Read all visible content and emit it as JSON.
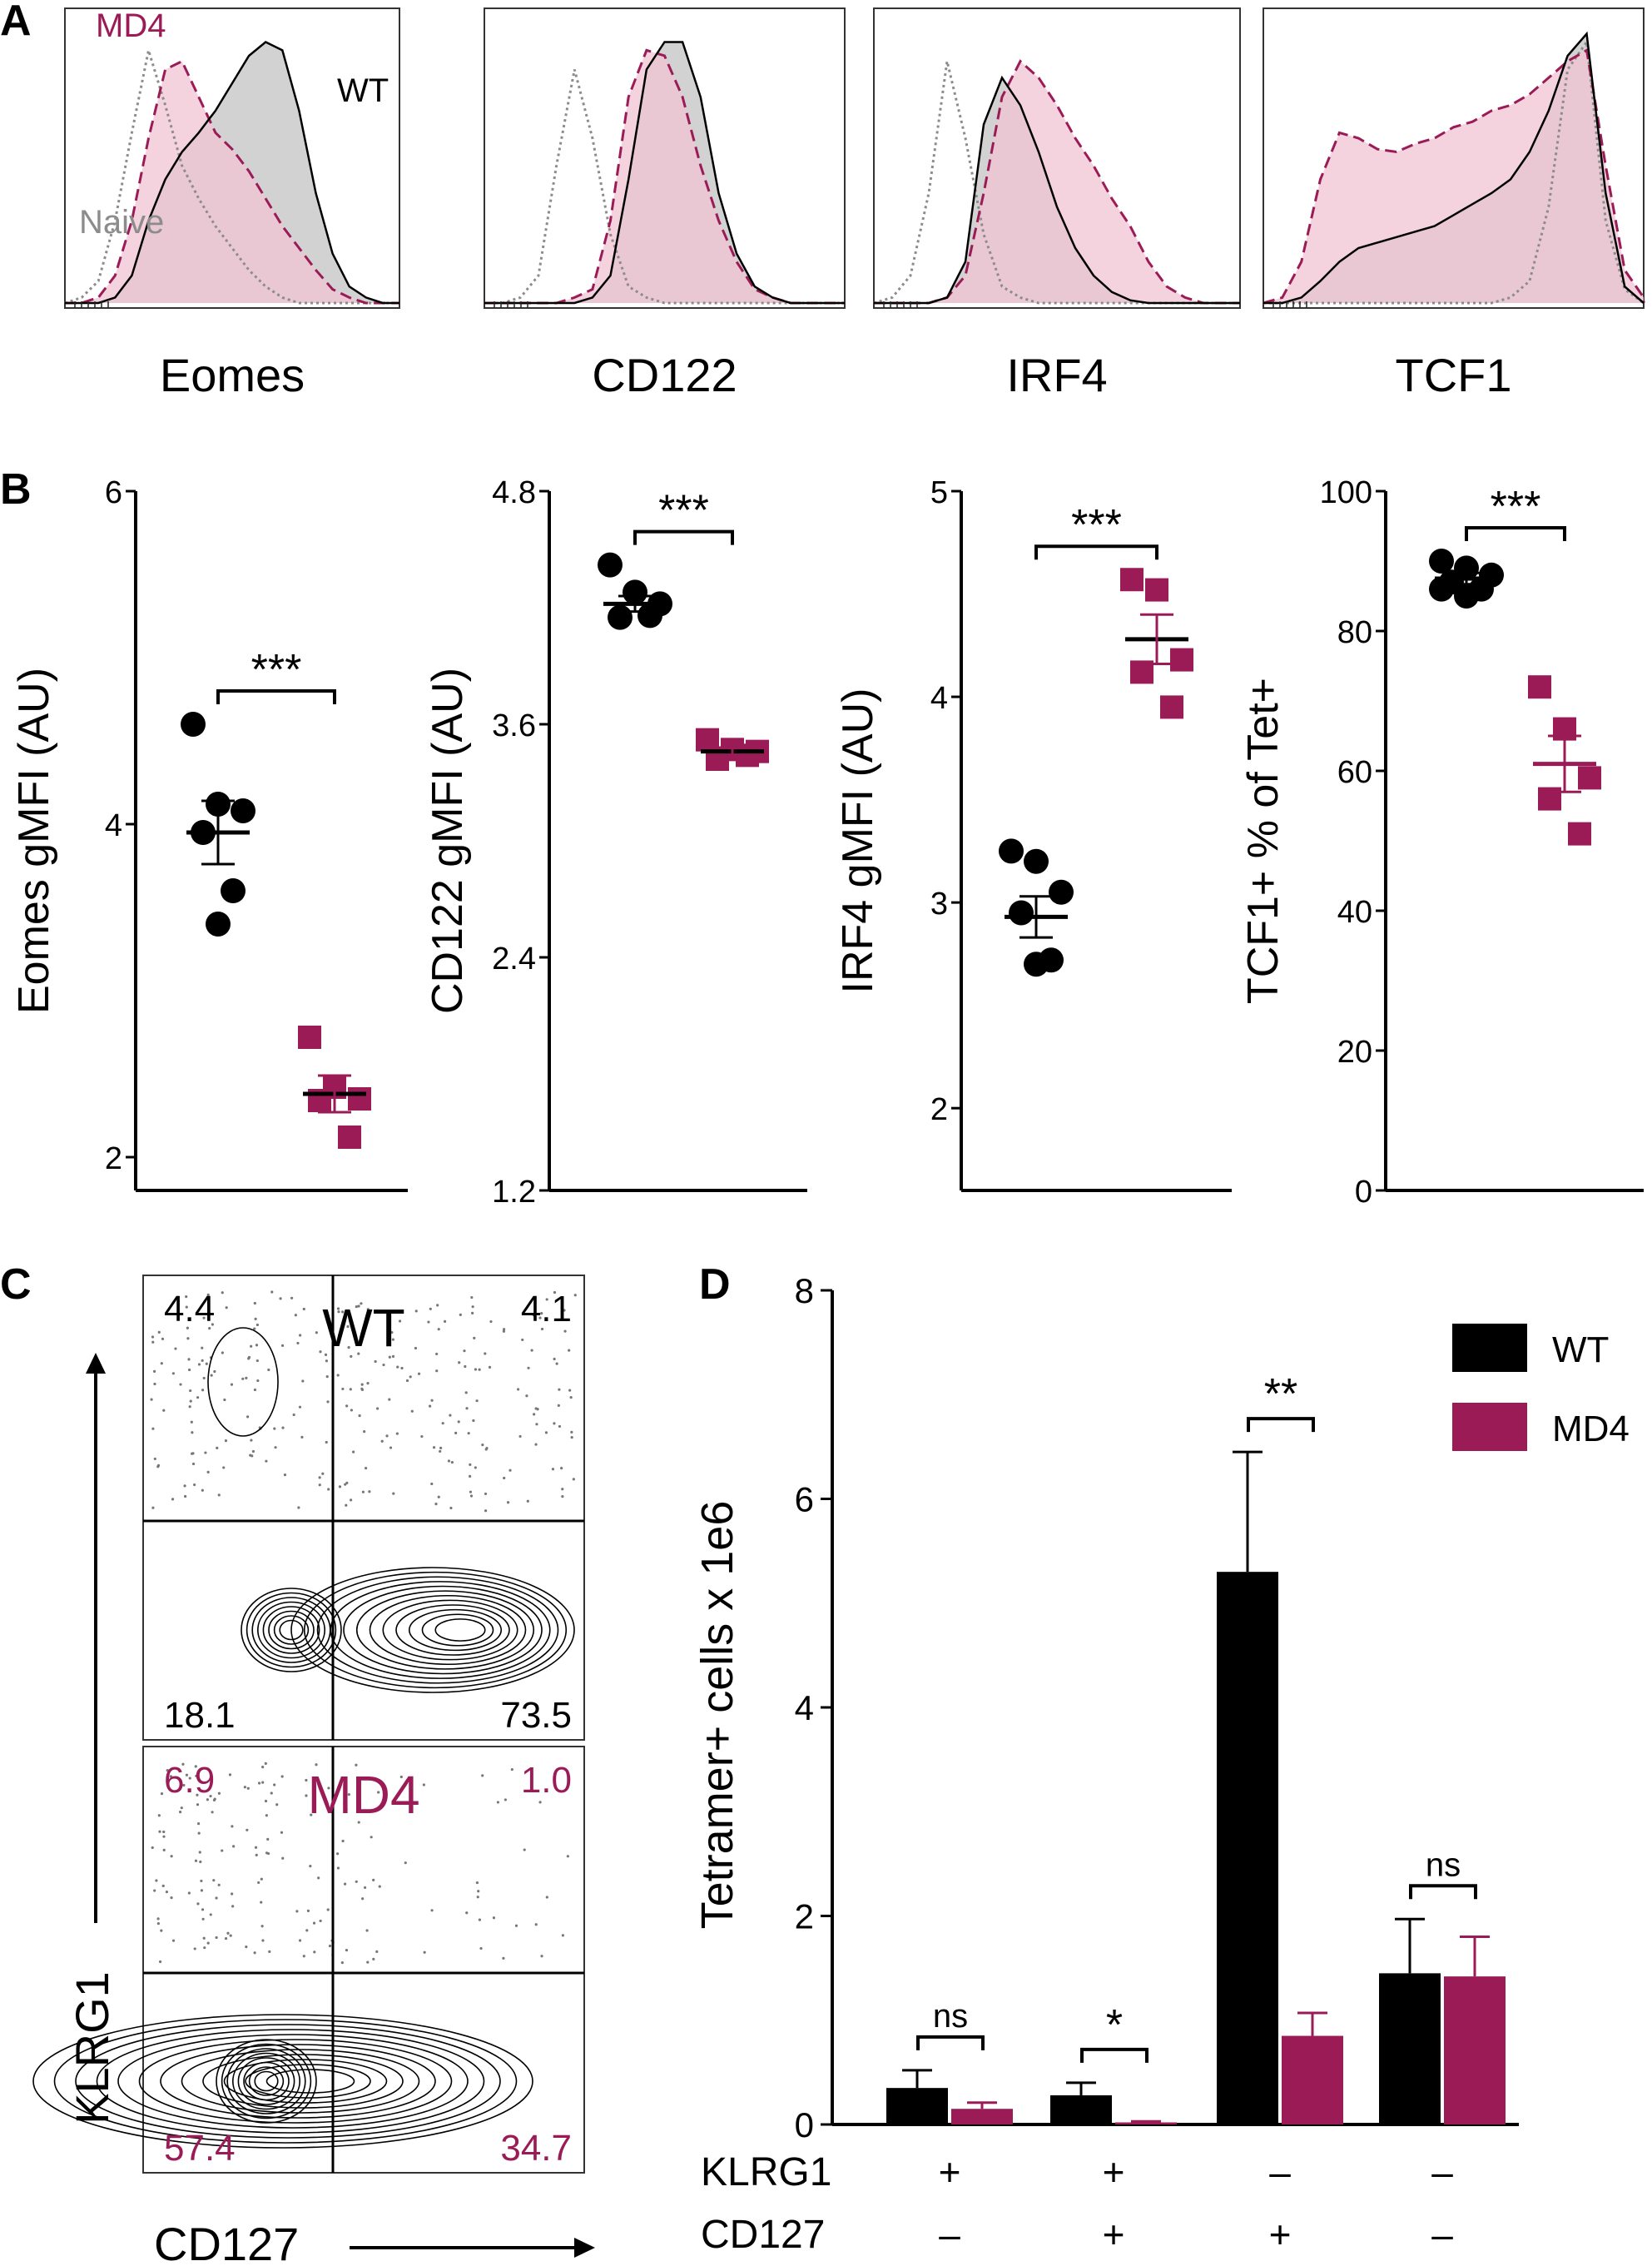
{
  "figure": {
    "panel_labels": [
      "A",
      "B",
      "C",
      "D"
    ],
    "colors": {
      "wt": "#000000",
      "md4": "#9b1b57",
      "md4_fill": "#f0c4d4",
      "wt_fill": "#d2d2d2",
      "naive": "#8c8c8c"
    }
  },
  "chart_data": [
    {
      "panel": "A",
      "type": "area",
      "subtype": "flow-cytometry histograms",
      "series_labels": {
        "md4": "MD4",
        "wt": "WT",
        "naive": "Naive"
      },
      "histograms": [
        {
          "xlabel": "Eomes",
          "profiles": {
            "naive": [
              0,
              0.02,
              0.08,
              0.3,
              0.62,
              0.92,
              0.72,
              0.5,
              0.38,
              0.28,
              0.2,
              0.12,
              0.06,
              0.02,
              0,
              0,
              0,
              0,
              0,
              0,
              0
            ],
            "md4": [
              0,
              0,
              0.02,
              0.1,
              0.3,
              0.6,
              0.85,
              0.88,
              0.75,
              0.62,
              0.56,
              0.48,
              0.38,
              0.28,
              0.2,
              0.12,
              0.05,
              0.02,
              0,
              0,
              0
            ],
            "wt": [
              0,
              0,
              0,
              0.02,
              0.1,
              0.3,
              0.45,
              0.55,
              0.62,
              0.7,
              0.8,
              0.9,
              0.95,
              0.92,
              0.7,
              0.4,
              0.18,
              0.06,
              0.02,
              0,
              0
            ]
          }
        },
        {
          "xlabel": "CD122",
          "profiles": {
            "naive": [
              0,
              0,
              0.02,
              0.1,
              0.5,
              0.85,
              0.6,
              0.25,
              0.06,
              0.02,
              0,
              0,
              0,
              0,
              0,
              0,
              0,
              0,
              0,
              0,
              0
            ],
            "md4": [
              0,
              0,
              0,
              0,
              0,
              0.02,
              0.05,
              0.3,
              0.75,
              0.92,
              0.9,
              0.75,
              0.5,
              0.3,
              0.15,
              0.05,
              0.02,
              0,
              0,
              0,
              0
            ],
            "wt": [
              0,
              0,
              0,
              0,
              0,
              0,
              0.02,
              0.1,
              0.45,
              0.85,
              0.95,
              0.95,
              0.75,
              0.4,
              0.18,
              0.06,
              0.02,
              0,
              0,
              0,
              0
            ]
          }
        },
        {
          "xlabel": "IRF4",
          "profiles": {
            "naive": [
              0,
              0.02,
              0.1,
              0.4,
              0.88,
              0.6,
              0.25,
              0.06,
              0.02,
              0,
              0,
              0,
              0,
              0,
              0,
              0,
              0,
              0,
              0,
              0,
              0
            ],
            "md4": [
              0,
              0,
              0,
              0,
              0.02,
              0.1,
              0.4,
              0.75,
              0.88,
              0.82,
              0.72,
              0.6,
              0.5,
              0.38,
              0.28,
              0.15,
              0.06,
              0.02,
              0,
              0,
              0
            ],
            "wt": [
              0,
              0,
              0,
              0,
              0.02,
              0.15,
              0.65,
              0.82,
              0.72,
              0.55,
              0.35,
              0.2,
              0.1,
              0.04,
              0.01,
              0,
              0,
              0,
              0,
              0,
              0
            ]
          }
        },
        {
          "xlabel": "TCF1",
          "profiles": {
            "naive": [
              0,
              0,
              0,
              0,
              0,
              0,
              0,
              0,
              0,
              0,
              0,
              0,
              0,
              0.02,
              0.08,
              0.35,
              0.85,
              0.95,
              0.3,
              0.05,
              0
            ],
            "md4": [
              0,
              0.02,
              0.15,
              0.45,
              0.62,
              0.6,
              0.56,
              0.55,
              0.58,
              0.6,
              0.64,
              0.66,
              0.7,
              0.72,
              0.76,
              0.82,
              0.88,
              0.92,
              0.5,
              0.12,
              0.02
            ],
            "wt": [
              0,
              0,
              0.02,
              0.08,
              0.15,
              0.2,
              0.22,
              0.24,
              0.26,
              0.28,
              0.32,
              0.36,
              0.4,
              0.45,
              0.55,
              0.7,
              0.9,
              0.98,
              0.4,
              0.06,
              0
            ]
          }
        }
      ]
    },
    {
      "panel": "B",
      "type": "scatter",
      "subplots": [
        {
          "ylabel": "Eomes gMFI (AU)",
          "ylim": [
            1.8,
            6
          ],
          "yticks": [
            "6",
            "4",
            "2"
          ],
          "ytick_values": [
            6,
            4,
            2
          ],
          "significance": "***",
          "wt": {
            "points": [
              4.6,
              4.12,
              4.08,
              3.95,
              3.6,
              3.4
            ],
            "mean": 3.95,
            "sem": 0.19
          },
          "md4": {
            "points": [
              2.72,
              2.42,
              2.35,
              2.34,
              2.12
            ],
            "mean": 2.38,
            "sem": 0.11
          }
        },
        {
          "ylabel": "CD122 gMFI (AU)",
          "ylim": [
            1.2,
            4.8
          ],
          "yticks": [
            "4.8",
            "3.6",
            "2.4",
            "1.2"
          ],
          "ytick_values": [
            4.8,
            3.6,
            2.4,
            1.2
          ],
          "significance": "***",
          "wt": {
            "points": [
              4.42,
              4.28,
              4.22,
              4.15,
              4.16
            ],
            "mean": 4.22,
            "sem": 0.04
          },
          "md4": {
            "points": [
              3.52,
              3.47,
              3.46,
              3.42,
              3.44
            ],
            "mean": 3.46,
            "sem": 0.02
          }
        },
        {
          "ylabel": "IRF4 gMFI (AU)",
          "ylim": [
            1.6,
            5
          ],
          "yticks": [
            "5",
            "4",
            "3",
            "2"
          ],
          "ytick_values": [
            5,
            4,
            3,
            2
          ],
          "significance": "***",
          "wt": {
            "points": [
              3.25,
              3.2,
              3.05,
              2.95,
              2.72,
              2.7
            ],
            "mean": 2.93,
            "sem": 0.1
          },
          "md4": {
            "points": [
              4.57,
              4.52,
              4.18,
              4.12,
              3.95
            ],
            "mean": 4.28,
            "sem": 0.12
          }
        },
        {
          "ylabel": "TCF1+ % of Tet+",
          "ylim": [
            0,
            100
          ],
          "yticks": [
            "100",
            "80",
            "60",
            "40",
            "20",
            "0"
          ],
          "ytick_values": [
            100,
            80,
            60,
            40,
            20,
            0
          ],
          "significance": "***",
          "wt": {
            "points": [
              90,
              89,
              88,
              87,
              86,
              85,
              86
            ],
            "mean": 87.5,
            "sem": 0.8
          },
          "md4": {
            "points": [
              72,
              66,
              59,
              56,
              51
            ],
            "mean": 61,
            "sem": 4
          }
        }
      ]
    },
    {
      "panel": "C",
      "type": "scatter",
      "subtype": "flow-cytometry contour plots",
      "ylabel": "KLRG1",
      "xlabel": "CD127",
      "plots": [
        {
          "label": "WT",
          "color": "#000000",
          "quadrants": {
            "top_left": "4.4",
            "top_right": "4.1",
            "bottom_left": "18.1",
            "bottom_right": "73.5"
          }
        },
        {
          "label": "MD4",
          "color": "#9b1b57",
          "quadrants": {
            "top_left": "6.9",
            "top_right": "1.0",
            "bottom_left": "57.4",
            "bottom_right": "34.7"
          }
        }
      ]
    },
    {
      "panel": "D",
      "type": "bar",
      "ylabel": "Tetramer+  cells x 1e6",
      "ylim": [
        0,
        8
      ],
      "yticks": [
        "0",
        "2",
        "4",
        "6",
        "8"
      ],
      "ytick_values": [
        0,
        2,
        4,
        6,
        8
      ],
      "legend": {
        "position": "top-right",
        "entries": [
          "WT",
          "MD4"
        ]
      },
      "group_labels": {
        "row1_title": "KLRG1",
        "row2_title": "CD127"
      },
      "groups": [
        {
          "klrg1": "+",
          "cd127": "–",
          "significance": "ns"
        },
        {
          "klrg1": "+",
          "cd127": "+",
          "significance": "*"
        },
        {
          "klrg1": "–",
          "cd127": "+",
          "significance": "**"
        },
        {
          "klrg1": "–",
          "cd127": "–",
          "significance": "ns"
        }
      ],
      "series": [
        {
          "name": "WT",
          "values": [
            0.35,
            0.28,
            5.3,
            1.45
          ],
          "errors": [
            0.17,
            0.12,
            1.15,
            0.52
          ]
        },
        {
          "name": "MD4",
          "values": [
            0.15,
            0.02,
            0.85,
            1.42
          ],
          "errors": [
            0.06,
            0.01,
            0.22,
            0.38
          ]
        }
      ]
    }
  ]
}
